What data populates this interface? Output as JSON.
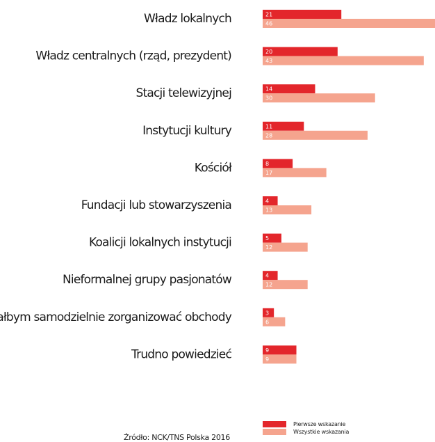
{
  "chart_data": {
    "type": "bar",
    "orientation": "horizontal",
    "categories": [
      "Władz lokalnych",
      "Władz centralnych (rząd, prezydent)",
      "Stacji telewizyjnej",
      "Instytucji kultury",
      "Kościół",
      "Fundacji lub stowarzyszenia",
      "Koalicji lokalnych instytucji",
      "Nieformalnej grupy pasjonatów",
      "Chciałbym samodzielnie zorganizować obchody",
      "Trudno powiedzieć"
    ],
    "series": [
      {
        "name": "Pierwsze wskazanie",
        "color": "#e3262b",
        "values": [
          21,
          20,
          14,
          11,
          8,
          4,
          5,
          4,
          3,
          9
        ]
      },
      {
        "name": "Wszystkie wskazania",
        "color": "#f5a48e",
        "values": [
          46,
          43,
          30,
          28,
          17,
          13,
          12,
          12,
          6,
          9
        ]
      }
    ],
    "xlim": [
      0,
      46
    ],
    "grid": false,
    "legend_position": "bottom-right"
  },
  "source": "Źródło: NCK/TNS Polska 2016"
}
